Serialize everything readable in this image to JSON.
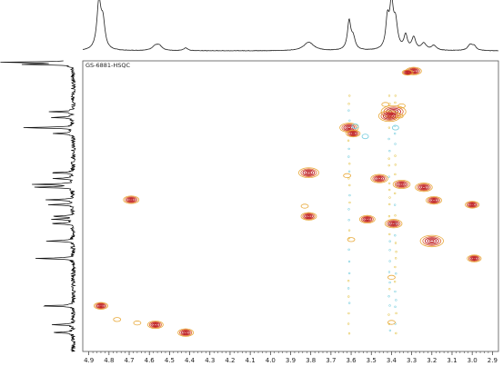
{
  "chart_data": {
    "type": "scatter",
    "subtype": "2D NMR HSQC contour plot with 1D projections",
    "title": "GS-6881-HSQC",
    "xlabel": "",
    "ylabel": "",
    "xlim": [
      4.93,
      2.87
    ],
    "x_ticks": [
      "4.9",
      "4.8",
      "4.7",
      "4.6",
      "4.5",
      "4.4",
      "4.3",
      "4.2",
      "4.1",
      "4.0",
      "3.9",
      "3.8",
      "3.7",
      "3.6",
      "3.5",
      "3.4",
      "3.3",
      "3.2",
      "3.1",
      "3.0",
      "2.9"
    ],
    "x_tick_values": [
      4.9,
      4.8,
      4.7,
      4.6,
      4.5,
      4.4,
      4.3,
      4.2,
      4.1,
      4.0,
      3.9,
      3.8,
      3.7,
      3.6,
      3.5,
      3.4,
      3.3,
      3.2,
      3.1,
      3.0,
      2.9
    ],
    "y_axis_reversed": true,
    "y_scale": "relative position, 0 = top of plot, 1 = bottom of plot",
    "ylim": [
      0,
      1
    ],
    "colors": {
      "strong": "#c0262a",
      "medium": "#e0652e",
      "weak": "#e8a93a",
      "negative": "#7fd0e0",
      "noise": "#e6c85a"
    },
    "cross_peaks": [
      {
        "x": 3.29,
        "y": 0.035,
        "size": 1.0
      },
      {
        "x": 3.32,
        "y": 0.04,
        "size": 0.7
      },
      {
        "x": 3.39,
        "y": 0.175,
        "size": 1.6
      },
      {
        "x": 3.41,
        "y": 0.19,
        "size": 1.4
      },
      {
        "x": 3.61,
        "y": 0.23,
        "size": 1.2
      },
      {
        "x": 3.59,
        "y": 0.25,
        "size": 0.9
      },
      {
        "x": 3.81,
        "y": 0.385,
        "size": 1.3
      },
      {
        "x": 3.46,
        "y": 0.405,
        "size": 1.1
      },
      {
        "x": 3.35,
        "y": 0.425,
        "size": 1.1
      },
      {
        "x": 3.24,
        "y": 0.435,
        "size": 1.1
      },
      {
        "x": 4.69,
        "y": 0.478,
        "size": 1.0
      },
      {
        "x": 3.19,
        "y": 0.48,
        "size": 1.0
      },
      {
        "x": 3.0,
        "y": 0.495,
        "size": 0.9
      },
      {
        "x": 3.81,
        "y": 0.535,
        "size": 1.0
      },
      {
        "x": 3.52,
        "y": 0.545,
        "size": 1.0
      },
      {
        "x": 3.39,
        "y": 0.56,
        "size": 1.1
      },
      {
        "x": 3.2,
        "y": 0.62,
        "size": 1.5
      },
      {
        "x": 2.99,
        "y": 0.68,
        "size": 0.9
      },
      {
        "x": 4.84,
        "y": 0.843,
        "size": 0.9
      },
      {
        "x": 4.57,
        "y": 0.908,
        "size": 1.0
      },
      {
        "x": 4.42,
        "y": 0.935,
        "size": 1.0
      }
    ],
    "weak_peaks": [
      {
        "x": 3.62,
        "y": 0.395
      },
      {
        "x": 4.76,
        "y": 0.89
      },
      {
        "x": 4.66,
        "y": 0.902
      },
      {
        "x": 3.4,
        "y": 0.745
      },
      {
        "x": 3.4,
        "y": 0.9
      },
      {
        "x": 3.6,
        "y": 0.615
      },
      {
        "x": 3.83,
        "y": 0.5
      },
      {
        "x": 3.43,
        "y": 0.15
      },
      {
        "x": 3.35,
        "y": 0.155
      },
      {
        "x": 3.36,
        "y": 0.19
      }
    ],
    "negative_peaks": [
      {
        "x": 3.53,
        "y": 0.26
      },
      {
        "x": 3.58,
        "y": 0.225
      },
      {
        "x": 3.38,
        "y": 0.23
      }
    ],
    "noise_columns_ppm": [
      3.61,
      3.41,
      3.38
    ],
    "top_projection_peaks": [
      {
        "x": 4.85,
        "h": 1.0,
        "w": 0.012
      },
      {
        "x": 4.83,
        "h": 0.55,
        "w": 0.012
      },
      {
        "x": 4.57,
        "h": 0.1,
        "w": 0.02
      },
      {
        "x": 4.55,
        "h": 0.08,
        "w": 0.015
      },
      {
        "x": 4.42,
        "h": 0.06,
        "w": 0.012
      },
      {
        "x": 3.81,
        "h": 0.18,
        "w": 0.03
      },
      {
        "x": 3.61,
        "h": 0.6,
        "w": 0.01
      },
      {
        "x": 3.59,
        "h": 0.25,
        "w": 0.012
      },
      {
        "x": 3.42,
        "h": 0.62,
        "w": 0.01
      },
      {
        "x": 3.4,
        "h": 0.92,
        "w": 0.01
      },
      {
        "x": 3.38,
        "h": 0.55,
        "w": 0.012
      },
      {
        "x": 3.33,
        "h": 0.3,
        "w": 0.01
      },
      {
        "x": 3.29,
        "h": 0.26,
        "w": 0.012
      },
      {
        "x": 3.24,
        "h": 0.14,
        "w": 0.015
      },
      {
        "x": 3.19,
        "h": 0.1,
        "w": 0.015
      },
      {
        "x": 3.01,
        "h": 0.12,
        "w": 0.015
      },
      {
        "x": 2.99,
        "h": 0.08,
        "w": 0.012
      }
    ],
    "left_projection_peaks": [
      {
        "y": 0.005,
        "h": 1.0
      },
      {
        "y": 0.012,
        "h": 0.7
      },
      {
        "y": 0.175,
        "h": 0.35
      },
      {
        "y": 0.195,
        "h": 0.3
      },
      {
        "y": 0.23,
        "h": 0.75
      },
      {
        "y": 0.25,
        "h": 0.28
      },
      {
        "y": 0.385,
        "h": 0.33
      },
      {
        "y": 0.405,
        "h": 0.3
      },
      {
        "y": 0.425,
        "h": 0.55
      },
      {
        "y": 0.435,
        "h": 0.6
      },
      {
        "y": 0.478,
        "h": 0.4
      },
      {
        "y": 0.495,
        "h": 0.35
      },
      {
        "y": 0.535,
        "h": 0.3
      },
      {
        "y": 0.545,
        "h": 0.28
      },
      {
        "y": 0.56,
        "h": 0.35
      },
      {
        "y": 0.62,
        "h": 0.4
      },
      {
        "y": 0.68,
        "h": 0.55
      },
      {
        "y": 0.843,
        "h": 0.45
      },
      {
        "y": 0.908,
        "h": 0.3
      },
      {
        "y": 0.935,
        "h": 0.28
      }
    ]
  }
}
